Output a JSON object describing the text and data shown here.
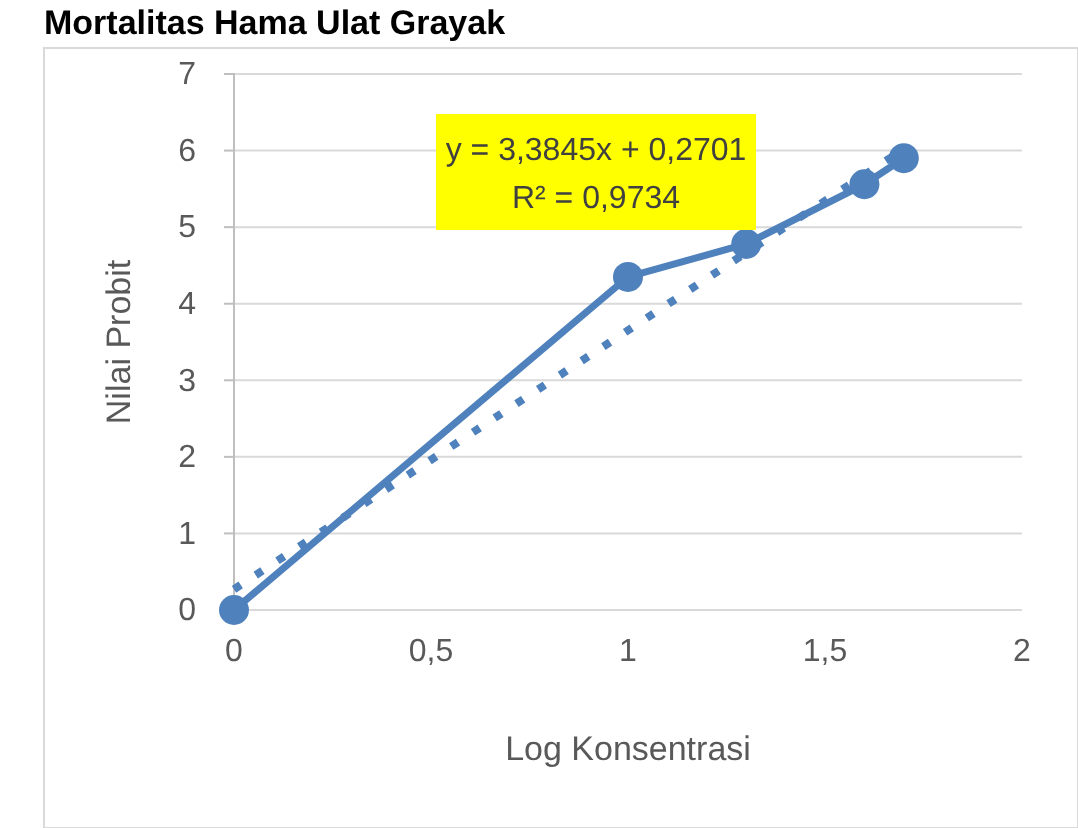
{
  "chart_data": {
    "type": "line",
    "title": "Mortalitas Hama Ulat Grayak",
    "xlabel": "Log Konsentrasi",
    "ylabel": "Nilai Probit",
    "series": [
      {
        "color": "#4f81bd",
        "x": [
          0,
          1,
          1.3,
          1.6,
          1.7
        ],
        "values": [
          0,
          4.35,
          4.78,
          5.56,
          5.9
        ],
        "marker": "circle",
        "line_style": "solid"
      },
      {
        "color": "#4f81bd",
        "x": [
          0,
          1.7
        ],
        "values": [
          0.27,
          6.02
        ],
        "marker": "none",
        "line_style": "dotted"
      }
    ],
    "annotations": [
      "y = 3,3845x + 0,2701",
      "R² = 0,9734"
    ],
    "xlim": [
      0,
      2
    ],
    "xticks": [
      0,
      {
        "value": 0.5,
        "label": "0,5"
      },
      1,
      {
        "value": 1.5,
        "label": "1,5"
      },
      2
    ],
    "ylim": [
      0,
      7
    ],
    "yticks": [
      0,
      1,
      2,
      3,
      4,
      5,
      6,
      7
    ],
    "grid": "y"
  }
}
